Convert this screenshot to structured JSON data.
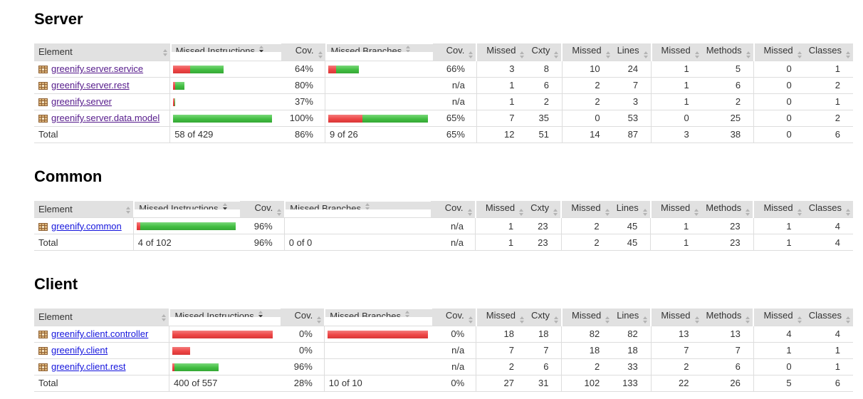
{
  "report": {
    "columns": [
      {
        "label": "Element",
        "sorted": false
      },
      {
        "label": "Missed Instructions",
        "sorted": true
      },
      {
        "label": "Cov.",
        "sorted": false
      },
      {
        "label": "Missed Branches",
        "sorted": false
      },
      {
        "label": "Cov.",
        "sorted": false
      },
      {
        "label": "Missed",
        "sorted": false
      },
      {
        "label": "Cxty",
        "sorted": false
      },
      {
        "label": "Missed",
        "sorted": false
      },
      {
        "label": "Lines",
        "sorted": false
      },
      {
        "label": "Missed",
        "sorted": false
      },
      {
        "label": "Methods",
        "sorted": false
      },
      {
        "label": "Missed",
        "sorted": false
      },
      {
        "label": "Classes",
        "sorted": false
      }
    ],
    "colors": {
      "bar_red": "#ee4545",
      "bar_green": "#41bd41",
      "header_bg": "#e1e1e1",
      "link_visited": "#551a8b",
      "link_unvisited": "#1414dd"
    },
    "icons": {
      "package_icon": "brown checkered package glyph",
      "sort_icon": "stacked up/down triangles"
    },
    "sections": [
      {
        "id": "server",
        "title": "Server",
        "link_style": "visited",
        "rows": [
          {
            "element": "greenify.server.service",
            "instr_bar": {
              "red": 24,
              "green": 47
            },
            "instr_cov": "64%",
            "branch_bar": {
              "red": 11,
              "green": 32
            },
            "branch_cov": "66%",
            "counters": [
              "3",
              "8",
              "10",
              "24",
              "1",
              "5",
              "0",
              "1"
            ]
          },
          {
            "element": "greenify.server.rest",
            "instr_bar": {
              "red": 3,
              "green": 13
            },
            "instr_cov": "80%",
            "branch_bar": null,
            "branch_cov": "n/a",
            "counters": [
              "1",
              "6",
              "2",
              "7",
              "1",
              "6",
              "0",
              "2"
            ]
          },
          {
            "element": "greenify.server",
            "instr_bar": {
              "red": 2,
              "green": 1
            },
            "instr_cov": "37%",
            "branch_bar": null,
            "branch_cov": "n/a",
            "counters": [
              "1",
              "2",
              "2",
              "3",
              "1",
              "2",
              "0",
              "1"
            ]
          },
          {
            "element": "greenify.server.data.model",
            "instr_bar": {
              "red": 0,
              "green": 139
            },
            "instr_cov": "100%",
            "branch_bar": {
              "red": 48,
              "green": 92
            },
            "branch_cov": "65%",
            "counters": [
              "7",
              "35",
              "0",
              "53",
              "0",
              "25",
              "0",
              "2"
            ]
          }
        ],
        "total": {
          "label": "Total",
          "instr": "58 of 429",
          "instr_cov": "86%",
          "branch": "9 of 26",
          "branch_cov": "65%",
          "counters": [
            "12",
            "51",
            "14",
            "87",
            "3",
            "38",
            "0",
            "6"
          ]
        }
      },
      {
        "id": "common",
        "title": "Common",
        "link_style": "unvisited",
        "rows": [
          {
            "element": "greenify.common",
            "instr_bar": {
              "red": 5,
              "green": 134
            },
            "instr_cov": "96%",
            "branch_bar": null,
            "branch_cov": "n/a",
            "counters": [
              "1",
              "23",
              "2",
              "45",
              "1",
              "23",
              "1",
              "4"
            ]
          }
        ],
        "total": {
          "label": "Total",
          "instr": "4 of 102",
          "instr_cov": "96%",
          "branch": "0 of 0",
          "branch_cov": "n/a",
          "counters": [
            "1",
            "23",
            "2",
            "45",
            "1",
            "23",
            "1",
            "4"
          ]
        }
      },
      {
        "id": "client",
        "title": "Client",
        "link_style": "unvisited",
        "rows": [
          {
            "element": "greenify.client.controller",
            "instr_bar": {
              "red": 141,
              "green": 0
            },
            "instr_cov": "0%",
            "branch_bar": {
              "red": 141,
              "green": 0
            },
            "branch_cov": "0%",
            "counters": [
              "18",
              "18",
              "82",
              "82",
              "13",
              "13",
              "4",
              "4"
            ]
          },
          {
            "element": "greenify.client",
            "instr_bar": {
              "red": 25,
              "green": 0
            },
            "instr_cov": "0%",
            "branch_bar": null,
            "branch_cov": "n/a",
            "counters": [
              "7",
              "7",
              "18",
              "18",
              "7",
              "7",
              "1",
              "1"
            ]
          },
          {
            "element": "greenify.client.rest",
            "instr_bar": {
              "red": 3,
              "green": 62
            },
            "instr_cov": "96%",
            "branch_bar": null,
            "branch_cov": "n/a",
            "counters": [
              "2",
              "6",
              "2",
              "33",
              "2",
              "6",
              "0",
              "1"
            ]
          }
        ],
        "total": {
          "label": "Total",
          "instr": "400 of 557",
          "instr_cov": "28%",
          "branch": "10 of 10",
          "branch_cov": "0%",
          "counters": [
            "27",
            "31",
            "102",
            "133",
            "22",
            "26",
            "5",
            "6"
          ]
        }
      }
    ]
  }
}
